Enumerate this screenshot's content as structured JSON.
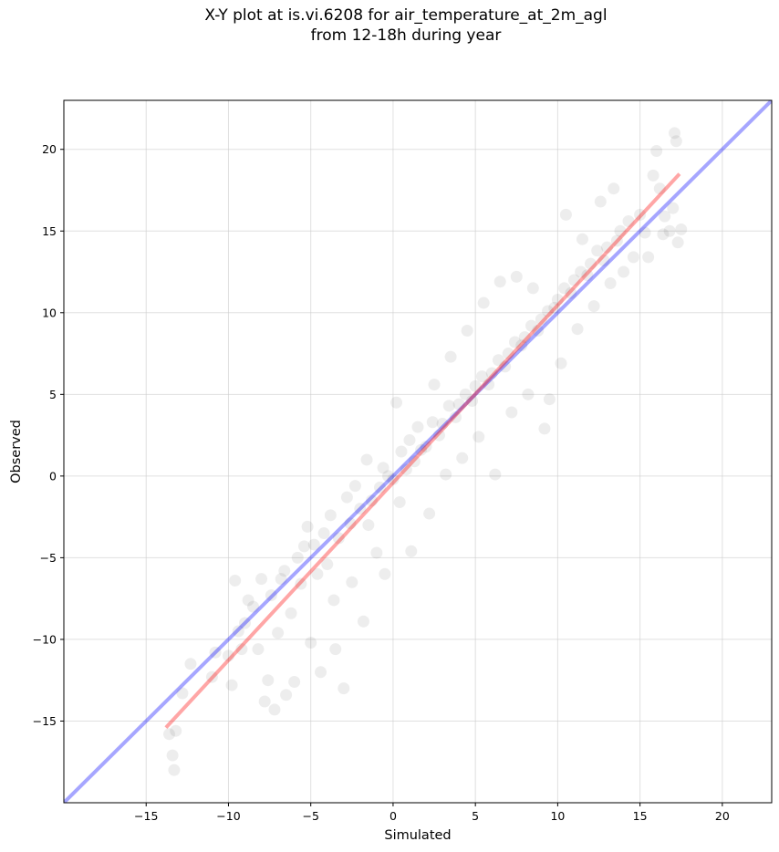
{
  "title": {
    "line1": "X-Y plot at is.vi.6208 for air_temperature_at_2m_agl",
    "line2": "from 12-18h during year"
  },
  "colors": {
    "points": "#000000",
    "identity_line": "#0000ff",
    "fit_line": "#ff0000",
    "grid": "#cccccc"
  },
  "chart_data": {
    "type": "scatter",
    "xlabel": "Simulated",
    "ylabel": "Observed",
    "xlim": [
      -20,
      23
    ],
    "ylim": [
      -20,
      23
    ],
    "x_ticks": [
      -15,
      -10,
      -5,
      0,
      5,
      10,
      15,
      20
    ],
    "y_ticks": [
      -15,
      -10,
      -5,
      0,
      5,
      10,
      15,
      20
    ],
    "x_tick_labels": [
      "−15",
      "−10",
      "−5",
      "0",
      "5",
      "10",
      "15",
      "20"
    ],
    "y_tick_labels": [
      "−15",
      "−10",
      "−5",
      "0",
      "5",
      "10",
      "15",
      "20"
    ],
    "grid": true,
    "point_alpha": 0.07,
    "series": [
      {
        "values": [
          [
            -13.6,
            -15.8
          ],
          [
            -13.4,
            -17.1
          ],
          [
            -13.3,
            -18.0
          ],
          [
            -13.2,
            -15.6
          ],
          [
            -12.8,
            -13.3
          ],
          [
            -12.3,
            -11.5
          ],
          [
            -11.0,
            -12.3
          ],
          [
            -10.8,
            -10.8
          ],
          [
            -10.0,
            -11.0
          ],
          [
            -9.8,
            -12.8
          ],
          [
            -9.6,
            -6.4
          ],
          [
            -9.4,
            -9.5
          ],
          [
            -9.2,
            -10.6
          ],
          [
            -9.0,
            -9.0
          ],
          [
            -8.8,
            -7.6
          ],
          [
            -8.5,
            -8.0
          ],
          [
            -8.2,
            -10.6
          ],
          [
            -8.0,
            -6.3
          ],
          [
            -7.8,
            -13.8
          ],
          [
            -7.6,
            -12.5
          ],
          [
            -7.4,
            -7.3
          ],
          [
            -7.2,
            -14.3
          ],
          [
            -7.0,
            -9.6
          ],
          [
            -6.8,
            -6.3
          ],
          [
            -6.6,
            -5.8
          ],
          [
            -6.5,
            -13.4
          ],
          [
            -6.2,
            -8.4
          ],
          [
            -6.0,
            -12.6
          ],
          [
            -5.8,
            -5.0
          ],
          [
            -5.6,
            -6.6
          ],
          [
            -5.4,
            -4.3
          ],
          [
            -5.2,
            -3.1
          ],
          [
            -5.0,
            -10.2
          ],
          [
            -4.8,
            -4.2
          ],
          [
            -4.6,
            -6.0
          ],
          [
            -4.4,
            -12.0
          ],
          [
            -4.2,
            -3.5
          ],
          [
            -4.0,
            -5.4
          ],
          [
            -3.8,
            -2.4
          ],
          [
            -3.6,
            -7.6
          ],
          [
            -3.5,
            -10.6
          ],
          [
            -3.3,
            -3.8
          ],
          [
            -3.0,
            -13.0
          ],
          [
            -2.8,
            -1.3
          ],
          [
            -2.6,
            -2.9
          ],
          [
            -2.5,
            -6.5
          ],
          [
            -2.3,
            -0.6
          ],
          [
            -2.0,
            -2.0
          ],
          [
            -1.8,
            -8.9
          ],
          [
            -1.6,
            1.0
          ],
          [
            -1.5,
            -3.0
          ],
          [
            -1.3,
            -1.5
          ],
          [
            -1.0,
            -4.7
          ],
          [
            -0.8,
            -0.7
          ],
          [
            -0.6,
            0.5
          ],
          [
            -0.5,
            -6.0
          ],
          [
            -0.3,
            0.0
          ],
          [
            0.0,
            -0.2
          ],
          [
            0.2,
            4.5
          ],
          [
            0.4,
            -1.6
          ],
          [
            0.5,
            1.5
          ],
          [
            0.8,
            0.4
          ],
          [
            1.0,
            2.2
          ],
          [
            1.1,
            -4.6
          ],
          [
            1.3,
            0.9
          ],
          [
            1.5,
            3.0
          ],
          [
            1.7,
            1.6
          ],
          [
            2.0,
            1.8
          ],
          [
            2.2,
            -2.3
          ],
          [
            2.4,
            3.3
          ],
          [
            2.5,
            5.6
          ],
          [
            2.8,
            2.5
          ],
          [
            3.0,
            3.2
          ],
          [
            3.2,
            0.1
          ],
          [
            3.4,
            4.3
          ],
          [
            3.5,
            7.3
          ],
          [
            3.8,
            3.6
          ],
          [
            4.0,
            4.4
          ],
          [
            4.2,
            1.1
          ],
          [
            4.4,
            5.0
          ],
          [
            4.5,
            8.9
          ],
          [
            4.8,
            4.6
          ],
          [
            5.0,
            5.5
          ],
          [
            5.2,
            2.4
          ],
          [
            5.4,
            6.1
          ],
          [
            5.5,
            10.6
          ],
          [
            5.8,
            5.6
          ],
          [
            6.0,
            6.3
          ],
          [
            6.2,
            0.1
          ],
          [
            6.4,
            7.1
          ],
          [
            6.5,
            11.9
          ],
          [
            6.8,
            6.7
          ],
          [
            7.0,
            7.5
          ],
          [
            7.2,
            3.9
          ],
          [
            7.4,
            8.2
          ],
          [
            7.5,
            12.2
          ],
          [
            7.8,
            8.0
          ],
          [
            8.0,
            8.5
          ],
          [
            8.2,
            5.0
          ],
          [
            8.4,
            9.2
          ],
          [
            8.5,
            11.5
          ],
          [
            8.8,
            8.9
          ],
          [
            9.0,
            9.6
          ],
          [
            9.2,
            2.9
          ],
          [
            9.4,
            10.1
          ],
          [
            9.5,
            4.7
          ],
          [
            9.8,
            10.3
          ],
          [
            10.0,
            10.8
          ],
          [
            10.2,
            6.9
          ],
          [
            10.4,
            11.5
          ],
          [
            10.5,
            16.0
          ],
          [
            10.8,
            11.2
          ],
          [
            11.0,
            12.0
          ],
          [
            11.2,
            9.0
          ],
          [
            11.4,
            12.5
          ],
          [
            11.5,
            14.5
          ],
          [
            11.8,
            12.3
          ],
          [
            12.0,
            13.0
          ],
          [
            12.2,
            10.4
          ],
          [
            12.4,
            13.8
          ],
          [
            12.6,
            16.8
          ],
          [
            12.8,
            13.2
          ],
          [
            13.0,
            14.0
          ],
          [
            13.2,
            11.8
          ],
          [
            13.4,
            17.6
          ],
          [
            13.6,
            14.4
          ],
          [
            13.8,
            15.0
          ],
          [
            14.0,
            12.5
          ],
          [
            14.3,
            15.6
          ],
          [
            14.6,
            13.4
          ],
          [
            15.0,
            16.0
          ],
          [
            15.3,
            14.9
          ],
          [
            15.5,
            13.4
          ],
          [
            15.8,
            18.4
          ],
          [
            16.0,
            19.9
          ],
          [
            16.2,
            17.6
          ],
          [
            16.5,
            15.9
          ],
          [
            16.8,
            15.0
          ],
          [
            17.0,
            16.4
          ],
          [
            17.2,
            20.5
          ],
          [
            17.3,
            14.3
          ],
          [
            17.5,
            15.1
          ],
          [
            17.1,
            21.0
          ],
          [
            16.4,
            14.8
          ]
        ]
      }
    ],
    "lines": [
      {
        "kind": "identity",
        "points": [
          [
            -20,
            -20
          ],
          [
            23,
            23
          ]
        ],
        "color": "#0000ff"
      },
      {
        "kind": "fit",
        "points": [
          [
            -13.8,
            -15.4
          ],
          [
            17.4,
            18.5
          ]
        ],
        "color": "#ff0000"
      }
    ]
  }
}
